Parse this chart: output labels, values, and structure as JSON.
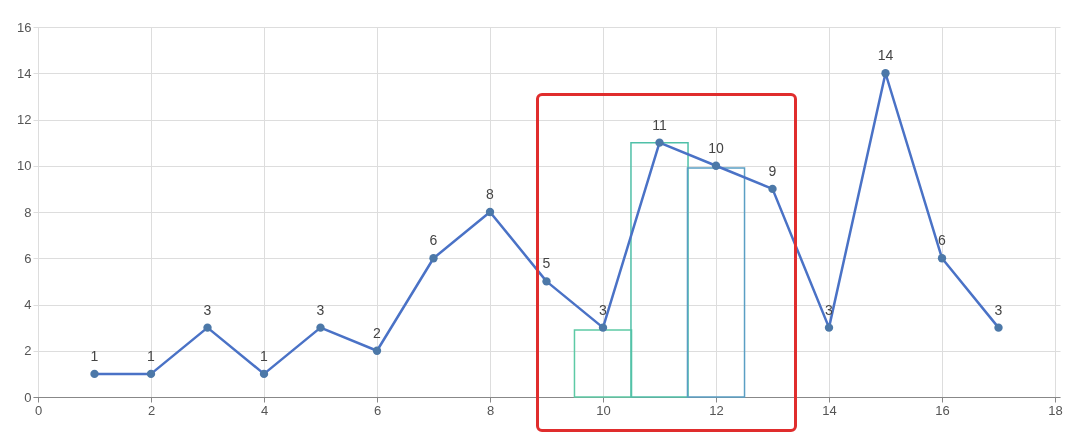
{
  "chart_data": {
    "type": "line",
    "xlim": [
      0,
      18
    ],
    "xticks": [
      0,
      2,
      4,
      6,
      8,
      10,
      12,
      14,
      16,
      18
    ],
    "ylim": [
      0,
      16
    ],
    "yticks": [
      0,
      2,
      4,
      6,
      8,
      10,
      12,
      14,
      16
    ],
    "grid": true,
    "marker": "circle",
    "line_style": "solid",
    "series": [
      {
        "type": "bar",
        "x": [
          10,
          11,
          12
        ],
        "values": [
          2.9,
          11,
          9.9
        ],
        "colors": [
          "#5dcaa5",
          "#4fc0a8",
          "#5a9fc4"
        ]
      },
      {
        "color": "#4a72c6",
        "x": [
          1,
          2,
          3,
          4,
          5,
          6,
          7,
          8,
          9,
          10,
          11,
          12,
          13,
          14,
          15,
          16,
          17
        ],
        "values": [
          1,
          1,
          3,
          1,
          3,
          2,
          6,
          8,
          5,
          3,
          11,
          10,
          9,
          3,
          14,
          6,
          3
        ],
        "value_labels": [
          "1",
          "1",
          "3",
          "1",
          "3",
          "2",
          "6",
          "8",
          "5",
          "3",
          "11",
          "10",
          "9",
          "3",
          "14",
          "6",
          "3"
        ]
      }
    ]
  }
}
